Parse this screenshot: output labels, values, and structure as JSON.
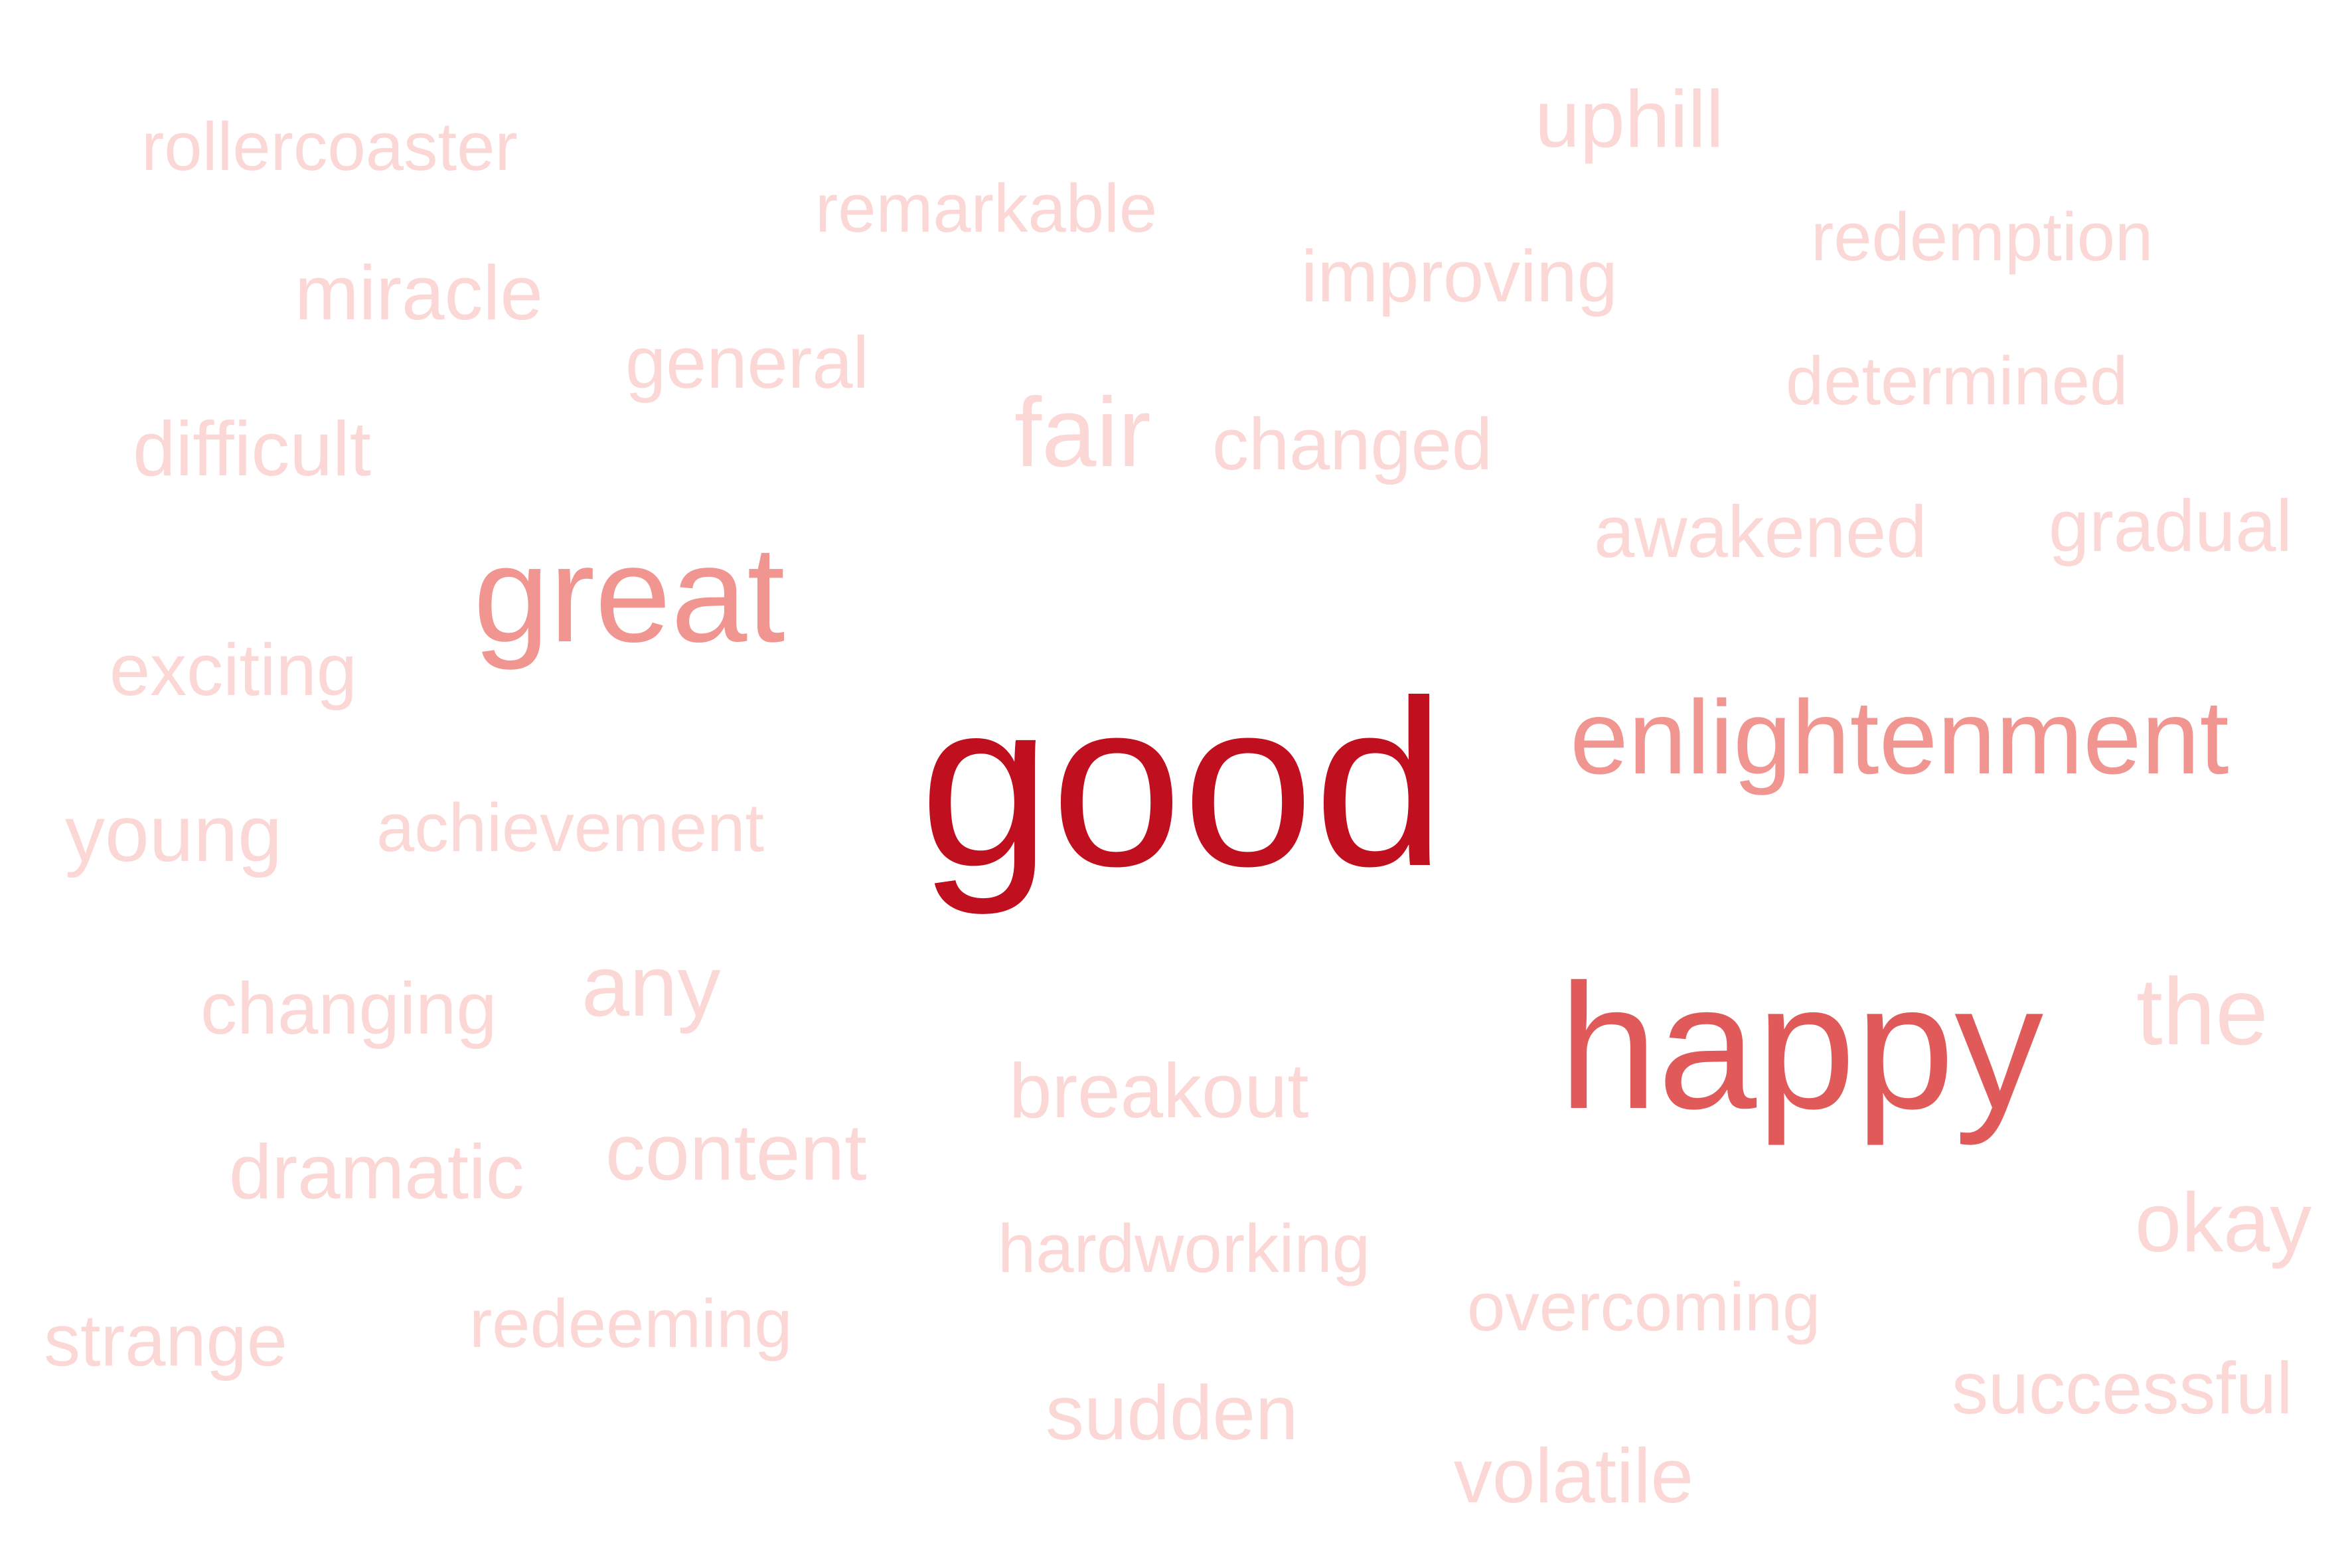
{
  "colors": {
    "background": "#ffffff",
    "w1": "#c0101f",
    "w2": "#e05a5a",
    "w3": "#f0958f",
    "w4": "#fbd7d5"
  },
  "words": [
    {
      "id": "rollercoaster",
      "text": "rollercoaster",
      "weight": 1
    },
    {
      "id": "remarkable",
      "text": "remarkable",
      "weight": 1
    },
    {
      "id": "uphill",
      "text": "uphill",
      "weight": 1
    },
    {
      "id": "redemption",
      "text": "redemption",
      "weight": 1
    },
    {
      "id": "miracle",
      "text": "miracle",
      "weight": 1
    },
    {
      "id": "improving",
      "text": "improving",
      "weight": 1
    },
    {
      "id": "general",
      "text": "general",
      "weight": 1
    },
    {
      "id": "determined",
      "text": "determined",
      "weight": 1
    },
    {
      "id": "difficult",
      "text": "difficult",
      "weight": 1
    },
    {
      "id": "fair",
      "text": "fair",
      "weight": 1
    },
    {
      "id": "changed",
      "text": "changed",
      "weight": 1
    },
    {
      "id": "awakened",
      "text": "awakened",
      "weight": 1
    },
    {
      "id": "gradual",
      "text": "gradual",
      "weight": 1
    },
    {
      "id": "great",
      "text": "great",
      "weight": 3
    },
    {
      "id": "exciting",
      "text": "exciting",
      "weight": 1
    },
    {
      "id": "good",
      "text": "good",
      "weight": 5
    },
    {
      "id": "enlightenment",
      "text": "enlightenment",
      "weight": 3
    },
    {
      "id": "young",
      "text": "young",
      "weight": 1
    },
    {
      "id": "achievement",
      "text": "achievement",
      "weight": 1
    },
    {
      "id": "changing",
      "text": "changing",
      "weight": 1
    },
    {
      "id": "any",
      "text": "any",
      "weight": 1
    },
    {
      "id": "happy",
      "text": "happy",
      "weight": 4
    },
    {
      "id": "the",
      "text": "the",
      "weight": 1
    },
    {
      "id": "breakout",
      "text": "breakout",
      "weight": 1
    },
    {
      "id": "dramatic",
      "text": "dramatic",
      "weight": 1
    },
    {
      "id": "content",
      "text": "content",
      "weight": 1
    },
    {
      "id": "okay",
      "text": "okay",
      "weight": 1
    },
    {
      "id": "hardworking",
      "text": "hardworking",
      "weight": 1
    },
    {
      "id": "overcoming",
      "text": "overcoming",
      "weight": 1
    },
    {
      "id": "strange",
      "text": "strange",
      "weight": 1
    },
    {
      "id": "redeeming",
      "text": "redeeming",
      "weight": 1
    },
    {
      "id": "successful",
      "text": "successful",
      "weight": 1
    },
    {
      "id": "sudden",
      "text": "sudden",
      "weight": 1
    },
    {
      "id": "volatile",
      "text": "volatile",
      "weight": 1
    }
  ]
}
